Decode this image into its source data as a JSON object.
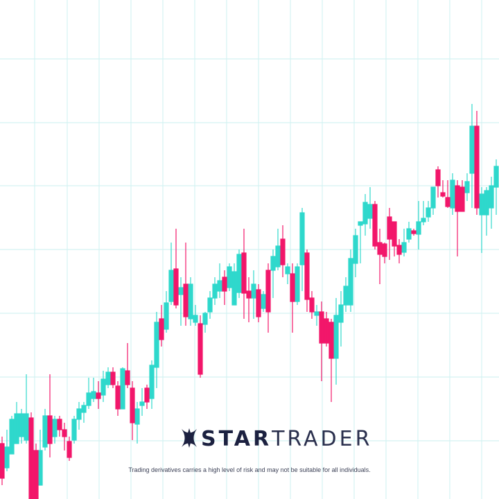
{
  "logo": {
    "primary": "STAR",
    "secondary": "TRADER"
  },
  "disclaimer": "Trading derivatives carries a high level of risk and may not be suitable for all individuals."
}
